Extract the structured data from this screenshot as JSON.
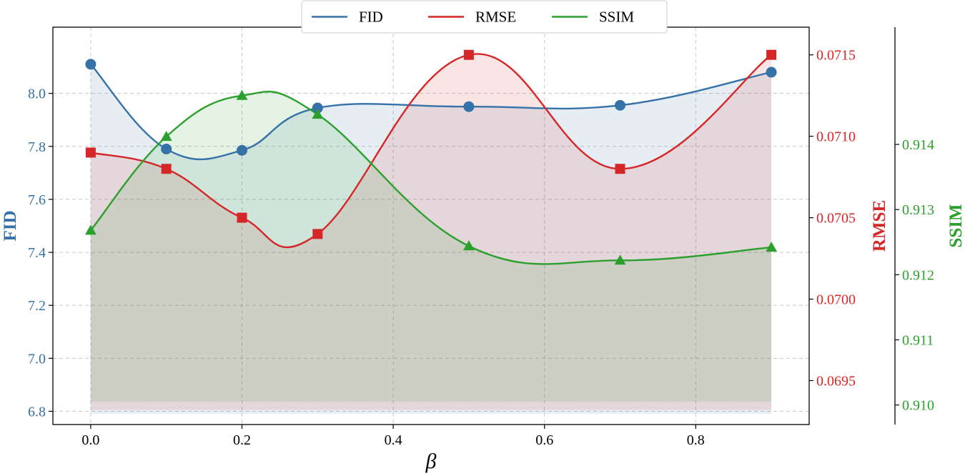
{
  "chart_data": {
    "type": "line",
    "xlabel": "β",
    "x": [
      0.0,
      0.1,
      0.2,
      0.3,
      0.5,
      0.7,
      0.9
    ],
    "xlim": [
      -0.05,
      0.95
    ],
    "xticks": [
      "0.0",
      "0.2",
      "0.4",
      "0.6",
      "0.8"
    ],
    "xtick_values": [
      0.0,
      0.2,
      0.4,
      0.6,
      0.8
    ],
    "grid": true,
    "legend_position": "top-center",
    "series": [
      {
        "name": "FID",
        "axis": "left",
        "color": "#3572a8",
        "marker": "circle",
        "values": [
          8.11,
          7.79,
          7.785,
          7.945,
          7.95,
          7.955,
          8.08
        ],
        "ylim": [
          6.75,
          8.25
        ],
        "ticks": [
          "6.8",
          "7.0",
          "7.2",
          "7.4",
          "7.6",
          "7.8",
          "8.0"
        ],
        "tick_values": [
          6.8,
          7.0,
          7.2,
          7.4,
          7.6,
          7.8,
          8.0
        ],
        "baseline": 6.79
      },
      {
        "name": "RMSE",
        "axis": "right",
        "color": "#d62728",
        "marker": "square",
        "values": [
          0.0709,
          0.0708,
          0.0705,
          0.0704,
          0.0715,
          0.0708,
          0.0715
        ],
        "ylim": [
          0.06923,
          0.07167
        ],
        "ticks": [
          "0.0695",
          "0.0700",
          "0.0705",
          "0.0710",
          "0.0715"
        ],
        "tick_values": [
          0.0695,
          0.07,
          0.0705,
          0.071,
          0.0715
        ],
        "baseline": 0.06932
      },
      {
        "name": "SSIM",
        "axis": "right-outer",
        "color": "#2ca02c",
        "marker": "triangle",
        "values": [
          0.91268,
          0.91412,
          0.91475,
          0.91446,
          0.91244,
          0.91222,
          0.91242
        ],
        "ylim": [
          0.9097,
          0.9158
        ],
        "ticks": [
          "0.910",
          "0.911",
          "0.912",
          "0.913",
          "0.914"
        ],
        "tick_values": [
          0.91,
          0.911,
          0.912,
          0.913,
          0.914
        ],
        "baseline": 0.91005
      }
    ]
  }
}
